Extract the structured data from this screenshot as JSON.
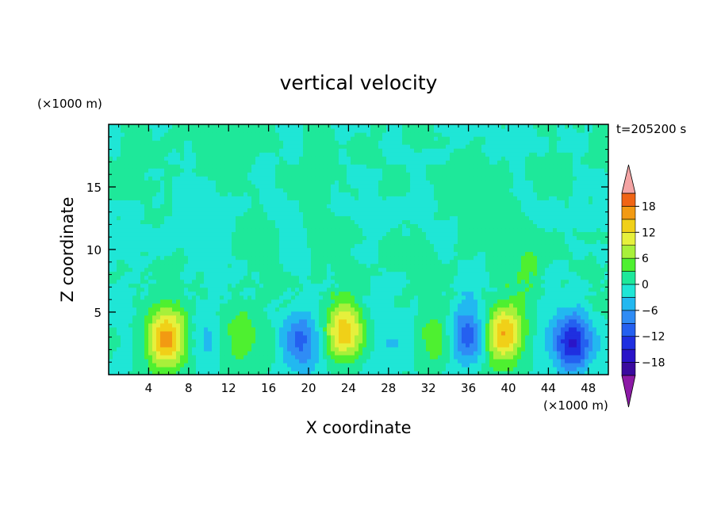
{
  "chart_data": {
    "type": "heatmap",
    "title": "vertical velocity",
    "xlabel": "X coordinate",
    "ylabel": "Z coordinate",
    "x_unit": "(×1000 m)",
    "y_unit": "(×1000 m)",
    "time_label": "t=205200 s",
    "xlim": [
      0,
      50
    ],
    "ylim": [
      0,
      20
    ],
    "x_ticks": [
      4,
      8,
      12,
      16,
      20,
      24,
      28,
      32,
      36,
      40,
      44,
      48
    ],
    "x_tick_labels": [
      "4",
      "8",
      "12",
      "16",
      "20",
      "24",
      "28",
      "32",
      "36",
      "40",
      "44",
      "48"
    ],
    "y_ticks": [
      5,
      10,
      15
    ],
    "y_tick_labels": [
      "5",
      "10",
      "15"
    ],
    "grid": false,
    "colorbar": {
      "levels": [
        -21,
        -18,
        -15,
        -12,
        -9,
        -6,
        -3,
        0,
        3,
        6,
        9,
        12,
        15,
        18,
        21
      ],
      "colors": [
        "#3a0a9e",
        "#2a14c8",
        "#1f2fe0",
        "#2460f0",
        "#2f8cf5",
        "#22b8f0",
        "#1fe6d6",
        "#1ee89a",
        "#4ef030",
        "#a8f03a",
        "#e6f03c",
        "#f0d018",
        "#f29a12",
        "#f06414",
        "#e82a18",
        "#e01812"
      ],
      "under_color": "#8c1aa6",
      "over_color": "#f4a4a4",
      "tick_values": [
        18,
        12,
        6,
        0,
        -6,
        -12,
        -18
      ],
      "tick_labels": [
        "18",
        "12",
        "6",
        "0",
        "−6",
        "−12",
        "−18"
      ]
    },
    "field_features": [
      {
        "x": 5.8,
        "z": 3.0,
        "w": 16
      },
      {
        "x": 23.6,
        "z": 3.6,
        "w": 13
      },
      {
        "x": 39.6,
        "z": 3.4,
        "w": 15
      },
      {
        "x": 12.8,
        "z": 3.0,
        "w": 5
      },
      {
        "x": 32.5,
        "z": 2.8,
        "w": 5
      },
      {
        "x": 46.5,
        "z": 2.6,
        "w": -16
      },
      {
        "x": 19.2,
        "z": 2.8,
        "w": -11
      },
      {
        "x": 35.8,
        "z": 3.2,
        "w": -10
      },
      {
        "x": 28.5,
        "z": 2.8,
        "w": -4
      },
      {
        "x": 10.0,
        "z": 2.6,
        "w": -5
      },
      {
        "x": 14.8,
        "z": 11.5,
        "w": 2
      },
      {
        "x": 42.0,
        "z": 8.6,
        "w": 3
      }
    ]
  }
}
